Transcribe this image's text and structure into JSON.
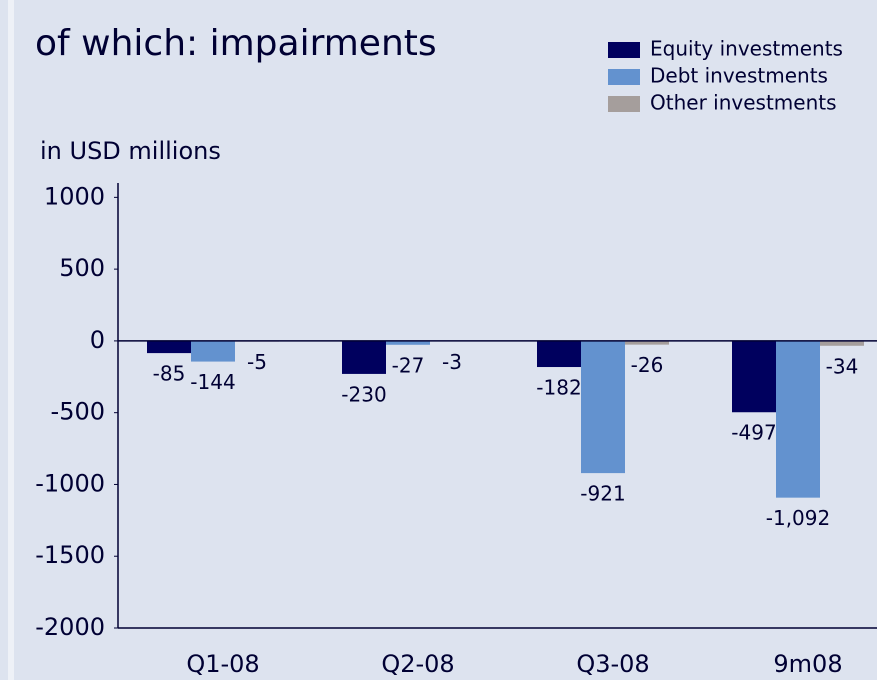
{
  "chart_data": {
    "type": "bar",
    "title": "of which: impairments",
    "y_label": "in USD millions",
    "categories": [
      "Q1-08",
      "Q2-08",
      "Q3-08",
      "9m08"
    ],
    "series": [
      {
        "name": "Equity investments",
        "color": "#00005e",
        "values": [
          -85,
          -230,
          -182,
          -497
        ],
        "value_labels": [
          "-85",
          "-230",
          "-182",
          "-497"
        ]
      },
      {
        "name": "Debt investments",
        "color": "#6392cf",
        "values": [
          -144,
          -27,
          -921,
          -1092
        ],
        "value_labels": [
          "-144",
          "-27",
          "-921",
          "-1,092"
        ]
      },
      {
        "name": "Other investments",
        "color": "#a59e9c",
        "values": [
          -5,
          -3,
          -26,
          -34
        ],
        "value_labels": [
          "-5",
          "-3",
          "-26",
          "-34"
        ]
      }
    ],
    "ylim": [
      -2000,
      1100
    ],
    "yticks": [
      -2000,
      -1500,
      -1000,
      -500,
      0,
      500,
      1000
    ]
  }
}
